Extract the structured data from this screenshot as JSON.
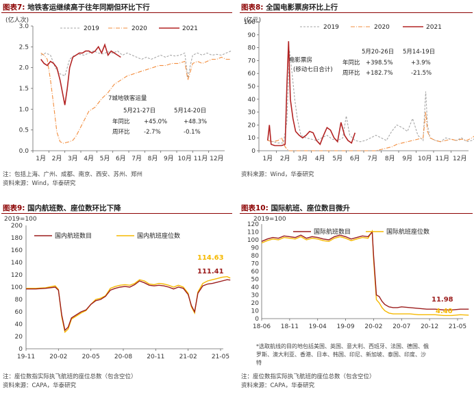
{
  "colors": {
    "y2019": "#a6a6a6",
    "y2020": "#f28c3c",
    "y2021": "#b22222",
    "domestic": "#9b1b1b",
    "seat": "#f5b800",
    "accent": "#8b0000"
  },
  "p7": {
    "num": "图表7:",
    "title": "地铁客运继续高于往年同期但环比下行",
    "note": "注：包括上海、广州、成都、南京、西安、苏州、郑州",
    "source": "资料来源：Wind，华泰研究",
    "ann_title": "7城地铁客运量",
    "ann_header": [
      "5月21-27日",
      "5月14-20日"
    ],
    "ann_rows": [
      {
        "label": "年同比",
        "a": "+45.0%",
        "b": "+48.3%"
      },
      {
        "label": "周环比",
        "a": "-2.7%",
        "b": "-0.1%"
      }
    ]
  },
  "p8": {
    "num": "图表8:",
    "title": "全国电影票房环比上行",
    "source": "资料来源：Wind，华泰研究",
    "ann_title": "电影票房",
    "ann_title2": "(移动七日合计)",
    "ann_header": [
      "5月20-26日",
      "5月14-19日"
    ],
    "ann_rows": [
      {
        "label": "年同比",
        "a": "+398.5%",
        "b": "+3.9%"
      },
      {
        "label": "周环比",
        "a": "+182.7%",
        "b": "-21.5%"
      }
    ]
  },
  "p9": {
    "num": "图表9:",
    "title": "国内航班数、座位数环比下降",
    "note": "注：座位数指实际执飞航班的座位总数（包含空位）",
    "source": "资料来源：CAPA，华泰研究"
  },
  "p10": {
    "num": "图表10:",
    "title": "国际航班、座位数目微升",
    "footnote1": "*选取航线的目的地包括美国、英国、意大利、西班牙、法国、德国、俄",
    "footnote2": "罗斯、澳大利亚、香港、日本、韩国、印尼、新加坡、泰国、印度、沙",
    "footnote3": "特",
    "note": "注：座位数指实际执飞航班的座位总数（包含空位）",
    "source": "资料来源：CAPA，华泰研究"
  },
  "chart_data": [
    {
      "type": "line",
      "id": "p7",
      "ylabel": "(亿人次)",
      "ylim": [
        0,
        3.0
      ],
      "yticks": [
        "0.0",
        "0.5",
        "1.0",
        "1.5",
        "2.0",
        "2.5",
        "3.0"
      ],
      "categories": [
        "1月",
        "2月",
        "3月",
        "4月",
        "5月",
        "6月",
        "7月",
        "8月",
        "9月",
        "10月",
        "11月",
        "12月"
      ],
      "series": [
        {
          "name": "2019",
          "style": "dashed",
          "x": [
            0,
            0.3,
            0.6,
            0.9,
            1.2,
            1.5,
            1.8,
            2.1,
            2.4,
            2.7,
            3.0,
            3.3,
            3.6,
            3.9,
            4.2,
            4.5,
            4.8,
            5.1,
            5.4,
            5.7,
            6.0,
            6.3,
            6.6,
            6.9,
            7.2,
            7.5,
            7.8,
            8.1,
            8.4,
            8.7,
            9.0,
            9.2,
            9.35,
            9.5,
            9.8,
            10.1,
            10.4,
            10.7,
            11.0,
            11.3,
            11.6,
            11.9
          ],
          "y": [
            2.3,
            2.35,
            2.3,
            2.0,
            1.85,
            1.8,
            2.2,
            2.3,
            2.32,
            2.3,
            2.35,
            2.4,
            2.35,
            2.33,
            2.38,
            2.35,
            2.4,
            2.3,
            2.35,
            2.3,
            2.25,
            2.2,
            2.25,
            2.2,
            2.25,
            2.3,
            2.25,
            2.3,
            2.28,
            2.3,
            2.35,
            1.75,
            2.05,
            2.3,
            2.35,
            2.3,
            2.35,
            2.3,
            2.32,
            2.3,
            2.35,
            2.4
          ]
        },
        {
          "name": "2020",
          "style": "dashdot",
          "x": [
            0,
            0.2,
            0.4,
            0.6,
            0.8,
            1.0,
            1.2,
            1.4,
            1.6,
            1.8,
            2.0,
            2.2,
            2.4,
            2.6,
            2.8,
            3.0,
            3.4,
            3.8,
            4.2,
            4.6,
            5.0,
            5.4,
            5.8,
            6.2,
            6.6,
            7.0,
            7.4,
            7.8,
            8.2,
            8.6,
            9.0,
            9.2,
            9.35,
            9.5,
            9.8,
            10.1,
            10.4,
            10.7,
            11.0,
            11.3,
            11.6,
            11.9
          ],
          "y": [
            2.35,
            2.3,
            2.2,
            1.7,
            1.1,
            0.45,
            0.22,
            0.18,
            0.2,
            0.22,
            0.25,
            0.35,
            0.5,
            0.65,
            0.8,
            0.95,
            1.05,
            1.25,
            1.4,
            1.6,
            1.7,
            1.8,
            1.85,
            1.9,
            1.95,
            2.0,
            2.05,
            2.05,
            2.1,
            2.1,
            2.15,
            1.7,
            1.9,
            2.1,
            2.15,
            2.1,
            2.15,
            2.2,
            2.2,
            2.25,
            2.2,
            2.2
          ]
        },
        {
          "name": "2021",
          "style": "solid",
          "x": [
            0,
            0.2,
            0.4,
            0.6,
            0.8,
            1.0,
            1.2,
            1.35,
            1.5,
            1.65,
            1.8,
            2.0,
            2.2,
            2.4,
            2.6,
            2.8,
            3.0,
            3.2,
            3.4,
            3.6,
            3.8,
            4.0,
            4.2,
            4.4,
            4.6,
            4.8,
            5.0
          ],
          "y": [
            2.2,
            2.1,
            2.05,
            2.15,
            2.1,
            2.0,
            1.7,
            1.4,
            1.1,
            1.5,
            2.0,
            2.25,
            2.3,
            2.35,
            2.35,
            2.4,
            2.4,
            2.35,
            2.4,
            2.5,
            2.35,
            2.55,
            2.3,
            2.4,
            2.35,
            2.3,
            2.25
          ]
        }
      ]
    },
    {
      "type": "line",
      "id": "p8",
      "ylabel": "(亿元)",
      "ylim": [
        0,
        100
      ],
      "yticks": [
        "0",
        "10",
        "20",
        "30",
        "40",
        "50",
        "60",
        "70",
        "80",
        "90",
        "100"
      ],
      "categories": [
        "1月",
        "2月",
        "3月",
        "4月",
        "5月",
        "6月",
        "7月",
        "8月",
        "9月",
        "10月",
        "11月",
        "12月"
      ],
      "series": [
        {
          "name": "2019",
          "style": "dashed",
          "x": [
            0,
            0.3,
            0.6,
            0.9,
            1.1,
            1.25,
            1.4,
            1.55,
            1.7,
            1.9,
            2.2,
            2.5,
            2.8,
            3.1,
            3.4,
            3.7,
            4.0,
            4.3,
            4.5,
            4.7,
            5.0,
            5.3,
            5.6,
            5.9,
            6.2,
            6.5,
            6.8,
            7.1,
            7.4,
            7.7,
            8.0,
            8.3,
            8.6,
            8.9,
            9.05,
            9.15,
            9.3,
            9.6,
            9.9,
            10.2,
            10.5,
            10.8,
            11.1,
            11.4,
            11.7,
            11.9
          ],
          "y": [
            8,
            7,
            6,
            6,
            22,
            78,
            60,
            40,
            25,
            12,
            10,
            9,
            8,
            10,
            12,
            9,
            8,
            10,
            27,
            12,
            8,
            7,
            8,
            10,
            12,
            10,
            8,
            15,
            20,
            18,
            15,
            25,
            12,
            8,
            46,
            20,
            10,
            8,
            7,
            10,
            9,
            8,
            10,
            7,
            8,
            10
          ]
        },
        {
          "name": "2020",
          "style": "dashdot",
          "x": [
            0,
            0.3,
            0.6,
            0.8,
            1.0,
            1.2,
            1.4,
            1.8,
            2.2,
            2.6,
            3.0,
            3.4,
            3.8,
            4.2,
            4.6,
            5.0,
            5.4,
            5.8,
            6.2,
            6.5,
            6.8,
            7.1,
            7.4,
            7.7,
            8.0,
            8.3,
            8.6,
            8.9,
            9.05,
            9.15,
            9.3,
            9.6,
            9.9,
            10.2,
            10.5,
            10.8,
            11.1,
            11.4,
            11.7,
            11.9
          ],
          "y": [
            8,
            7,
            8,
            10,
            3,
            0,
            0,
            0,
            0,
            0,
            0,
            0,
            0,
            0,
            0,
            0,
            0,
            0,
            0,
            1,
            2,
            3,
            5,
            6,
            7,
            8,
            9,
            10,
            30,
            15,
            10,
            8,
            7,
            8,
            9,
            8,
            9,
            8,
            10,
            12
          ]
        },
        {
          "name": "2021",
          "style": "solid",
          "x": [
            0,
            0.1,
            0.2,
            0.4,
            0.6,
            0.8,
            1.0,
            1.1,
            1.2,
            1.3,
            1.45,
            1.6,
            1.8,
            2.0,
            2.2,
            2.4,
            2.6,
            2.8,
            3.0,
            3.2,
            3.4,
            3.6,
            3.8,
            4.0,
            4.2,
            4.4,
            4.6,
            4.8,
            5.0
          ],
          "y": [
            8,
            20,
            5,
            4,
            4,
            4,
            5,
            50,
            85,
            40,
            25,
            15,
            12,
            10,
            12,
            15,
            14,
            8,
            5,
            12,
            18,
            16,
            10,
            7,
            22,
            12,
            8,
            6,
            14
          ]
        }
      ],
      "annotation_values": {
        "5月20-26日": {
          "年同比": "+398.5%",
          "周环比": "+182.7%"
        },
        "5月14-19日": {
          "年同比": "+3.9%",
          "周环比": "-21.5%"
        }
      }
    },
    {
      "type": "line",
      "id": "p9",
      "ylabel": "2019=100",
      "ylim": [
        0,
        200
      ],
      "yticks": [
        "0",
        "20",
        "40",
        "60",
        "80",
        "100",
        "120",
        "140",
        "160",
        "180",
        "200"
      ],
      "categories": [
        "19-11",
        "20-02",
        "20-05",
        "20-08",
        "20-11",
        "21-02",
        "21-05"
      ],
      "series": [
        {
          "name": "国内航班数目",
          "x": [
            0,
            0.3,
            0.6,
            0.9,
            1.0,
            1.1,
            1.2,
            1.3,
            1.4,
            1.55,
            1.7,
            1.85,
            2.0,
            2.15,
            2.3,
            2.45,
            2.6,
            2.75,
            2.9,
            3.05,
            3.2,
            3.35,
            3.5,
            3.65,
            3.8,
            3.95,
            4.1,
            4.25,
            4.4,
            4.55,
            4.7,
            4.85,
            5.0,
            5.1,
            5.2,
            5.3,
            5.45,
            5.6,
            5.75,
            5.9,
            6.05,
            6.2,
            6.3
          ],
          "y": [
            97,
            97,
            98,
            100,
            95,
            55,
            30,
            35,
            50,
            55,
            60,
            63,
            72,
            78,
            80,
            85,
            95,
            98,
            100,
            101,
            100,
            104,
            110,
            107,
            103,
            102,
            103,
            102,
            100,
            97,
            100,
            98,
            88,
            70,
            60,
            90,
            102,
            105,
            106,
            108,
            110,
            112,
            111.41
          ]
        },
        {
          "name": "国内航班座位数",
          "x": [
            0,
            0.3,
            0.6,
            0.9,
            1.0,
            1.1,
            1.2,
            1.3,
            1.4,
            1.55,
            1.7,
            1.85,
            2.0,
            2.15,
            2.3,
            2.45,
            2.6,
            2.75,
            2.9,
            3.05,
            3.2,
            3.35,
            3.5,
            3.65,
            3.8,
            3.95,
            4.1,
            4.25,
            4.4,
            4.55,
            4.7,
            4.85,
            5.0,
            5.1,
            5.2,
            5.3,
            5.45,
            5.6,
            5.75,
            5.9,
            6.05,
            6.2,
            6.3
          ],
          "y": [
            98,
            98,
            99,
            102,
            96,
            52,
            27,
            32,
            48,
            53,
            58,
            62,
            72,
            80,
            82,
            86,
            98,
            101,
            103,
            104,
            103,
            106,
            112,
            110,
            105,
            104,
            106,
            105,
            103,
            100,
            103,
            100,
            90,
            68,
            58,
            92,
            106,
            110,
            112,
            114,
            116,
            117,
            114.63
          ]
        }
      ],
      "end_labels": [
        "114.63",
        "111.41"
      ]
    },
    {
      "type": "line",
      "id": "p10",
      "ylabel": "2019=100",
      "ylim": [
        0,
        120
      ],
      "yticks": [
        "0",
        "10",
        "20",
        "30",
        "40",
        "50",
        "60",
        "70",
        "80",
        "90",
        "100",
        "110",
        "120"
      ],
      "categories": [
        "18-06",
        "18-11",
        "19-04",
        "19-09",
        "20-02",
        "20-07",
        "20-12",
        "21-05"
      ],
      "series": [
        {
          "name": "国际航班数目",
          "x": [
            0,
            0.2,
            0.4,
            0.6,
            0.8,
            1.0,
            1.2,
            1.4,
            1.6,
            1.8,
            2.0,
            2.2,
            2.4,
            2.6,
            2.8,
            3.0,
            3.2,
            3.4,
            3.6,
            3.8,
            3.95,
            4.0,
            4.1,
            4.2,
            4.3,
            4.4,
            4.55,
            4.7,
            4.85,
            5.0,
            5.3,
            5.6,
            5.9,
            6.2,
            6.5,
            6.8,
            7.1,
            7.4
          ],
          "y": [
            98,
            101,
            103,
            102,
            105,
            104,
            103,
            106,
            102,
            104,
            103,
            101,
            100,
            104,
            106,
            104,
            101,
            103,
            105,
            104,
            110,
            80,
            30,
            28,
            22,
            18,
            15,
            14,
            14,
            15,
            14,
            13,
            12,
            12,
            11,
            11,
            12,
            11.98
          ]
        },
        {
          "name": "国际航班座位数",
          "x": [
            0,
            0.2,
            0.4,
            0.6,
            0.8,
            1.0,
            1.2,
            1.4,
            1.6,
            1.8,
            2.0,
            2.2,
            2.4,
            2.6,
            2.8,
            3.0,
            3.2,
            3.4,
            3.6,
            3.8,
            3.95,
            4.0,
            4.1,
            4.2,
            4.3,
            4.4,
            4.55,
            4.7,
            4.85,
            5.0,
            5.3,
            5.6,
            5.9,
            6.2,
            6.5,
            6.8,
            7.1,
            7.4
          ],
          "y": [
            96,
            99,
            101,
            100,
            103,
            102,
            101,
            104,
            100,
            102,
            101,
            99,
            98,
            102,
            104,
            102,
            99,
            101,
            103,
            102,
            111,
            75,
            24,
            20,
            14,
            10,
            7,
            6,
            6,
            6,
            6,
            5,
            5,
            5,
            4,
            4,
            5,
            4.4
          ]
        }
      ],
      "end_labels": [
        "11.98",
        "4.40"
      ]
    }
  ]
}
